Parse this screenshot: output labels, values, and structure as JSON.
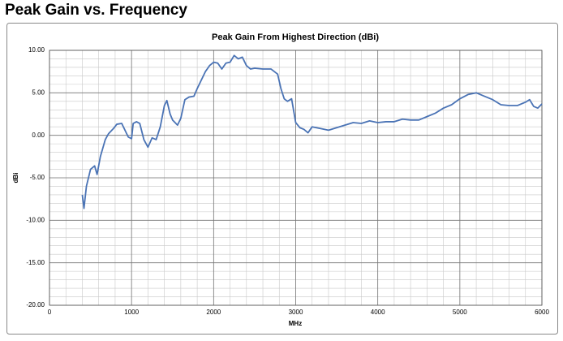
{
  "page_title": "Peak Gain vs. Frequency",
  "chart_data": {
    "type": "line",
    "title": "Peak Gain From Highest Direction (dBi)",
    "x_label": "MHz",
    "y_label": "dBi",
    "x": [
      400,
      420,
      450,
      500,
      550,
      580,
      620,
      680,
      720,
      780,
      820,
      880,
      920,
      960,
      1000,
      1020,
      1060,
      1100,
      1150,
      1200,
      1250,
      1300,
      1350,
      1400,
      1430,
      1470,
      1500,
      1560,
      1600,
      1650,
      1700,
      1760,
      1800,
      1850,
      1900,
      1950,
      2000,
      2050,
      2100,
      2150,
      2200,
      2250,
      2300,
      2350,
      2400,
      2450,
      2500,
      2600,
      2700,
      2780,
      2820,
      2860,
      2900,
      2950,
      3000,
      3050,
      3100,
      3150,
      3200,
      3300,
      3400,
      3500,
      3600,
      3700,
      3800,
      3900,
      4000,
      4100,
      4200,
      4300,
      4400,
      4500,
      4600,
      4700,
      4800,
      4900,
      5000,
      5100,
      5200,
      5300,
      5400,
      5500,
      5600,
      5700,
      5800,
      5850,
      5900,
      5950,
      6000
    ],
    "series": [
      {
        "name": "Peak Gain",
        "color": "#4a73b5",
        "values": [
          -7,
          -8.6,
          -6,
          -4,
          -3.6,
          -4.6,
          -2.5,
          -0.5,
          0.2,
          0.8,
          1.3,
          1.4,
          0.6,
          -0.2,
          -0.4,
          1.4,
          1.6,
          1.4,
          -0.5,
          -1.4,
          -0.3,
          -0.5,
          1,
          3.5,
          4.1,
          2.5,
          1.8,
          1.2,
          2,
          4.2,
          4.5,
          4.6,
          5.5,
          6.5,
          7.5,
          8.2,
          8.6,
          8.5,
          7.8,
          8.5,
          8.6,
          9.4,
          9.0,
          9.2,
          8.2,
          7.8,
          7.9,
          7.8,
          7.8,
          7.2,
          5.5,
          4.3,
          4.0,
          4.3,
          1.5,
          0.9,
          0.7,
          0.3,
          1.0,
          0.8,
          0.6,
          0.9,
          1.2,
          1.5,
          1.4,
          1.7,
          1.5,
          1.6,
          1.6,
          1.9,
          1.8,
          1.8,
          2.2,
          2.6,
          3.2,
          3.6,
          4.3,
          4.8,
          5.0,
          4.6,
          4.2,
          3.6,
          3.5,
          3.5,
          3.9,
          4.2,
          3.4,
          3.2,
          3.7
        ]
      }
    ],
    "xlim": [
      0,
      6000
    ],
    "xticks": [
      0,
      1000,
      2000,
      3000,
      4000,
      5000,
      6000
    ],
    "ylim": [
      -20,
      10
    ],
    "yticks": [
      {
        "value": -20,
        "label": "-20.00"
      },
      {
        "value": -15,
        "label": "-15.00"
      },
      {
        "value": -10,
        "label": "-10.00"
      },
      {
        "value": -5,
        "label": "-5.00"
      },
      {
        "value": 0,
        "label": "0.00"
      },
      {
        "value": 5,
        "label": "5.00"
      },
      {
        "value": 10,
        "label": "10.00"
      }
    ],
    "grid": true,
    "minor_grid_step": [
      200,
      1
    ]
  }
}
